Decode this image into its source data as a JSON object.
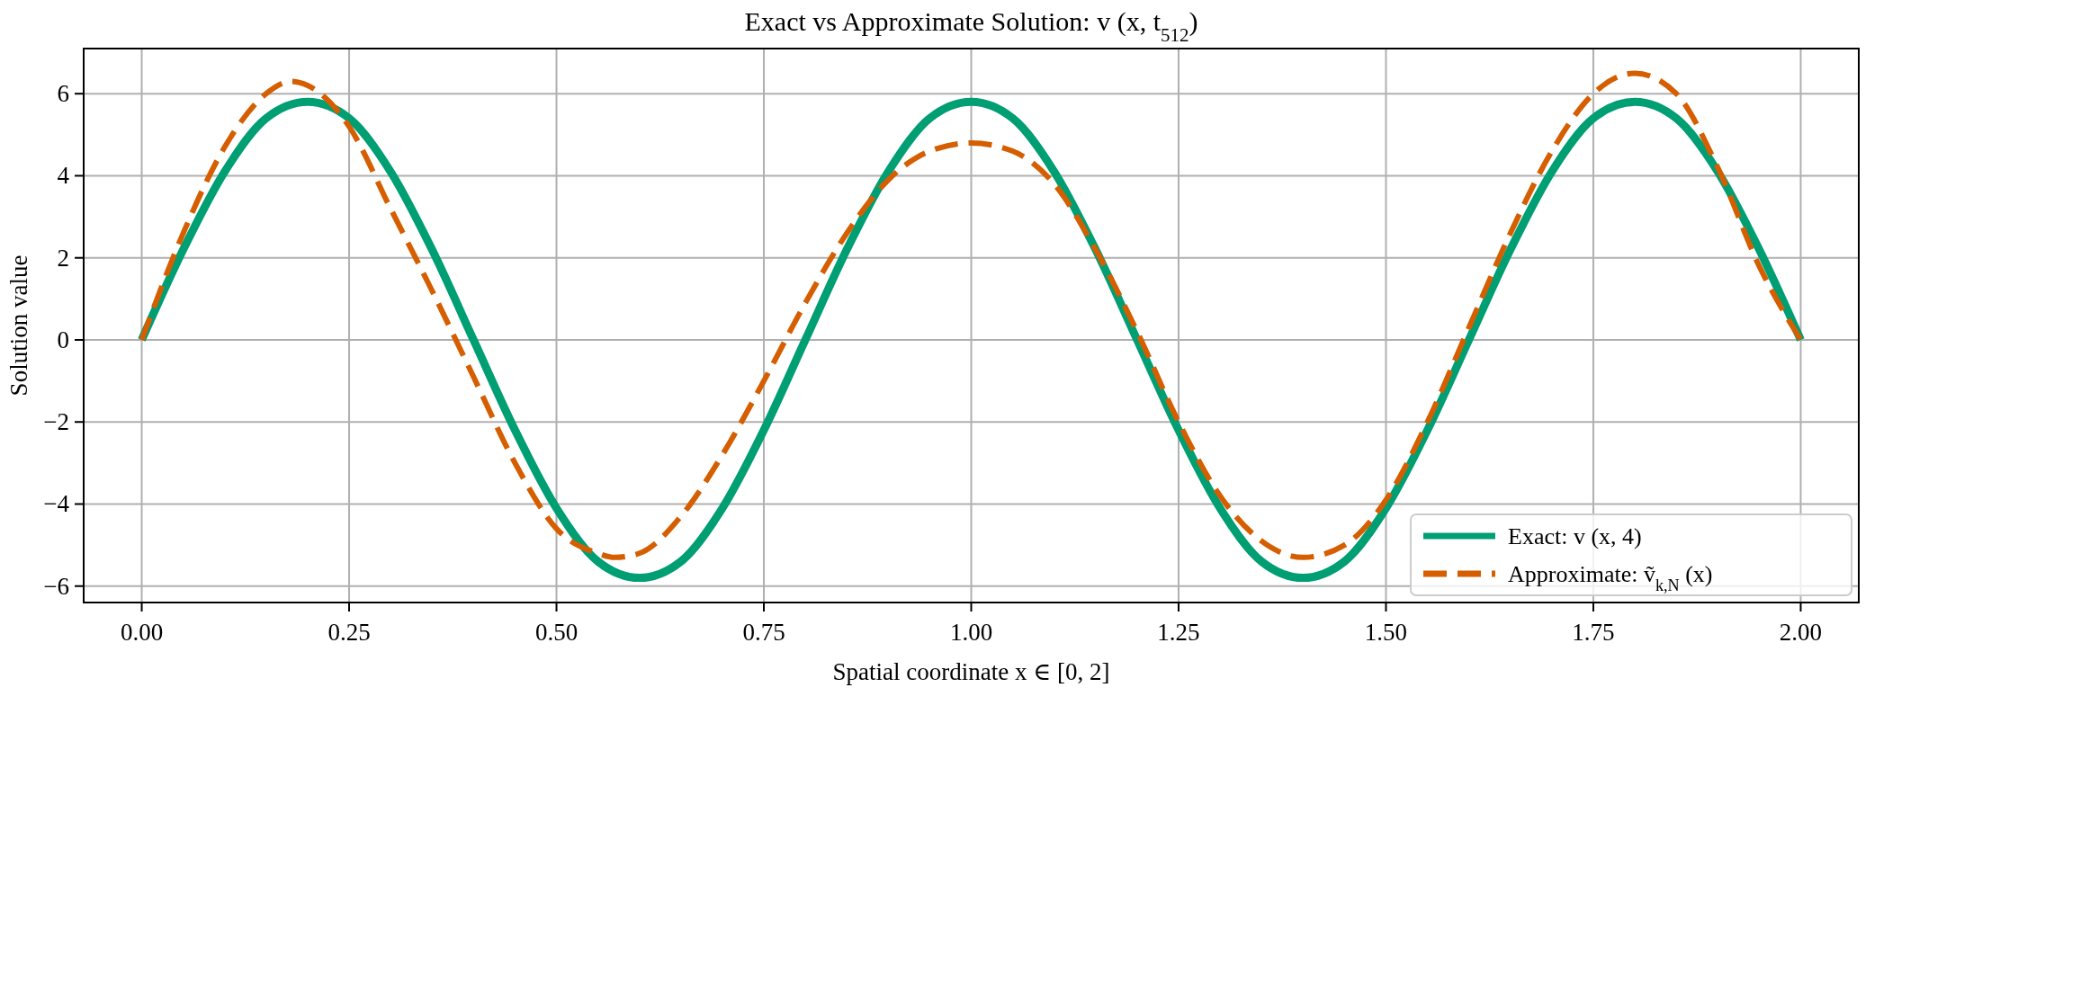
{
  "chart_data": {
    "type": "line",
    "title": "Exact vs Approximate Solution: v (x, t$_{512}$)",
    "xlabel": "Spatial coordinate x ∈ [0, 2]",
    "ylabel": "Solution value",
    "xlim": [
      -0.07,
      2.07
    ],
    "ylim": [
      -6.4,
      7.1
    ],
    "xticks": [
      {
        "value": 0,
        "label": "0.00"
      },
      {
        "value": 0.25,
        "label": "0.25"
      },
      {
        "value": 0.5,
        "label": "0.50"
      },
      {
        "value": 0.75,
        "label": "0.75"
      },
      {
        "value": 1,
        "label": "1.00"
      },
      {
        "value": 1.25,
        "label": "1.25"
      },
      {
        "value": 1.5,
        "label": "1.50"
      },
      {
        "value": 1.75,
        "label": "1.75"
      },
      {
        "value": 2,
        "label": "2.00"
      }
    ],
    "yticks": [
      {
        "value": -6,
        "label": "−6"
      },
      {
        "value": -4,
        "label": "−4"
      },
      {
        "value": -2,
        "label": "−2"
      },
      0,
      2,
      4,
      6
    ],
    "grid": true,
    "legend": "bottom right",
    "series": [
      {
        "name": "Exact: v (x, 4)",
        "color": "#009e73",
        "line_style": "solid",
        "x": [
          0,
          0.05,
          0.1,
          0.15,
          0.2,
          0.25,
          0.3,
          0.35,
          0.4,
          0.45,
          0.5,
          0.55,
          0.6,
          0.65,
          0.7,
          0.75,
          0.8,
          0.85,
          0.9,
          0.95,
          1,
          1.05,
          1.1,
          1.15,
          1.2,
          1.25,
          1.3,
          1.35,
          1.4,
          1.45,
          1.5,
          1.55,
          1.6,
          1.65,
          1.7,
          1.75,
          1.8,
          1.85,
          1.9,
          1.95,
          2
        ],
        "values": [
          0,
          2.2,
          4.1,
          5.4,
          5.8,
          5.4,
          4.1,
          2.2,
          0,
          -2.2,
          -4.1,
          -5.4,
          -5.8,
          -5.4,
          -4.1,
          -2.2,
          0,
          2.2,
          4.1,
          5.4,
          5.8,
          5.4,
          4.1,
          2.2,
          0,
          -2.2,
          -4.1,
          -5.4,
          -5.8,
          -5.4,
          -4.1,
          -2.2,
          0,
          2.2,
          4.1,
          5.4,
          5.8,
          5.4,
          4.1,
          2.2,
          0
        ]
      },
      {
        "name": "Approximate: ṽ$_{k,N}$ (x)",
        "color": "#d55e00",
        "line_style": "dashed",
        "x": [
          0,
          0.05,
          0.1,
          0.15,
          0.18,
          0.2,
          0.25,
          0.3,
          0.35,
          0.4,
          0.45,
          0.5,
          0.55,
          0.57,
          0.6,
          0.65,
          0.7,
          0.75,
          0.8,
          0.85,
          0.9,
          0.95,
          1,
          1.05,
          1.1,
          1.15,
          1.2,
          1.25,
          1.3,
          1.35,
          1.4,
          1.45,
          1.5,
          1.55,
          1.6,
          1.65,
          1.7,
          1.75,
          1.8,
          1.85,
          1.9,
          1.95,
          2
        ],
        "values": [
          0,
          2.6,
          4.7,
          6.0,
          6.3,
          6.2,
          5.2,
          3.2,
          1.2,
          -0.9,
          -3.0,
          -4.6,
          -5.2,
          -5.3,
          -5.2,
          -4.3,
          -2.8,
          -1.0,
          0.9,
          2.6,
          3.9,
          4.6,
          4.8,
          4.6,
          3.8,
          2.2,
          0.2,
          -2.0,
          -3.8,
          -4.9,
          -5.3,
          -5.0,
          -3.9,
          -2.0,
          0.3,
          2.6,
          4.6,
          6.0,
          6.5,
          6.0,
          4.2,
          1.8,
          0
        ]
      }
    ]
  }
}
